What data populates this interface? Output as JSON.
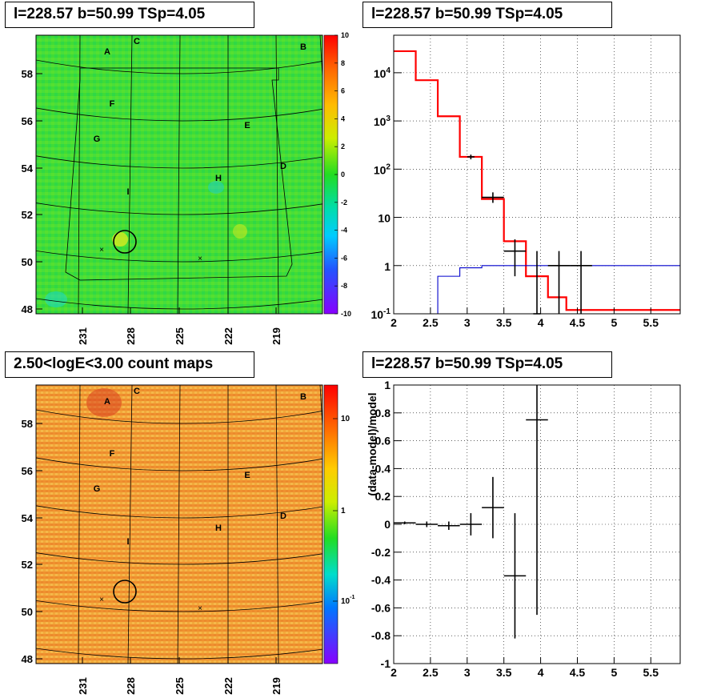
{
  "panels": {
    "tl_title": "l=228.57 b=50.99 TSp=4.05",
    "tr_title": "l=228.57 b=50.99 TSp=4.05",
    "bl_title": "2.50<logE<3.00 count maps",
    "br_title": "l=228.57 b=50.99 TSp=4.05"
  },
  "colors": {
    "model_red": "#ff0000",
    "model_blue": "#0000cc",
    "data_black": "#000000",
    "tsmap_base": "#33dd33",
    "counts_base": "#f0a030"
  },
  "chart_data": [
    {
      "id": "tsmap",
      "type": "heatmap",
      "title": "l=228.57 b=50.99 TSp=4.05",
      "x_ticks": [
        "231",
        "228",
        "225",
        "222",
        "219"
      ],
      "y_ticks": [
        "58",
        "56",
        "54",
        "52",
        "50",
        "48"
      ],
      "colorbar_ticks": [
        "10",
        "8",
        "6",
        "4",
        "2",
        "0",
        "-2",
        "-4",
        "-6",
        "-8",
        "-10"
      ],
      "zlim": [
        -10,
        10
      ],
      "source_labels": [
        "A",
        "B",
        "C",
        "D",
        "E",
        "F",
        "G",
        "H",
        "I"
      ],
      "markers": [
        {
          "type": "circle",
          "l": 228.57,
          "b": 50.7
        },
        {
          "type": "cross",
          "l": 229.8,
          "b": 50.4
        },
        {
          "type": "cross",
          "l": 223.6,
          "b": 50.0
        }
      ]
    },
    {
      "id": "spectrum",
      "type": "line",
      "title": "l=228.57 b=50.99 TSp=4.05",
      "xlim": [
        2,
        5.9
      ],
      "ylim": [
        0.1,
        60000
      ],
      "yscale": "log",
      "x_ticks": [
        "2",
        "2.5",
        "3",
        "3.5",
        "4",
        "4.5",
        "5",
        "5.5"
      ],
      "y_ticks": [
        "10^-1",
        "1",
        "10",
        "10^2",
        "10^3",
        "10^4"
      ],
      "grid": true,
      "series": [
        {
          "kind": "step",
          "color": "#ff0000",
          "bins": [
            {
              "x0": 2.0,
              "x1": 2.3,
              "y": 28000
            },
            {
              "x0": 2.3,
              "x1": 2.6,
              "y": 7000
            },
            {
              "x0": 2.6,
              "x1": 2.9,
              "y": 1250
            },
            {
              "x0": 2.9,
              "x1": 3.2,
              "y": 180
            },
            {
              "x0": 3.2,
              "x1": 3.5,
              "y": 24
            },
            {
              "x0": 3.5,
              "x1": 3.8,
              "y": 3.2
            },
            {
              "x0": 3.8,
              "x1": 3.95,
              "y": 0.6
            },
            {
              "x0": 3.95,
              "x1": 4.1,
              "y": 0.6
            },
            {
              "x0": 4.1,
              "x1": 4.35,
              "y": 0.22
            },
            {
              "x0": 4.35,
              "x1": 4.6,
              "y": 0.12
            },
            {
              "x0": 4.6,
              "x1": 5.9,
              "y": 0.12
            }
          ]
        },
        {
          "kind": "step",
          "color": "#0000cc",
          "bins": [
            {
              "x0": 2.3,
              "x1": 2.6,
              "y": 0.1
            },
            {
              "x0": 2.6,
              "x1": 2.9,
              "y": 0.6
            },
            {
              "x0": 2.9,
              "x1": 3.2,
              "y": 0.9
            },
            {
              "x0": 3.2,
              "x1": 3.5,
              "y": 1.0
            },
            {
              "x0": 3.5,
              "x1": 5.9,
              "y": 1.0
            }
          ]
        },
        {
          "kind": "errorbar",
          "color": "#000000",
          "points": [
            {
              "x": 3.05,
              "y": 180,
              "xerr": 0.05,
              "ylo": 160,
              "yhi": 200
            },
            {
              "x": 3.35,
              "y": 26,
              "xerr": 0.15,
              "ylo": 20,
              "yhi": 33
            },
            {
              "x": 3.65,
              "y": 2.0,
              "xerr": 0.15,
              "ylo": 0.6,
              "yhi": 3.5
            },
            {
              "x": 3.95,
              "y": 0.1,
              "xerr": 0.05,
              "ylo": 0.1,
              "yhi": 2.0
            },
            {
              "x": 4.25,
              "y": 1.0,
              "xerr": 0.15,
              "ylo": 0.1,
              "yhi": 2.0
            },
            {
              "x": 4.55,
              "y": 1.0,
              "xerr": 0.15,
              "ylo": 0.1,
              "yhi": 2.0
            }
          ]
        }
      ]
    },
    {
      "id": "countmap",
      "type": "heatmap",
      "title": "2.50<logE<3.00 count maps",
      "x_ticks": [
        "231",
        "228",
        "225",
        "222",
        "219"
      ],
      "y_ticks": [
        "58",
        "56",
        "54",
        "52",
        "50",
        "48"
      ],
      "colorbar_ticks": [
        "10",
        "1",
        "10^-1"
      ],
      "zscale": "log",
      "source_labels": [
        "A",
        "B",
        "C",
        "D",
        "E",
        "F",
        "G",
        "H",
        "I"
      ],
      "markers": [
        {
          "type": "circle",
          "l": 228.57,
          "b": 50.7
        },
        {
          "type": "cross",
          "l": 229.8,
          "b": 50.4
        },
        {
          "type": "cross",
          "l": 223.6,
          "b": 50.0
        }
      ]
    },
    {
      "id": "residuals",
      "type": "scatter",
      "title": "l=228.57 b=50.99 TSp=4.05",
      "ylabel": "(data-model)/model",
      "xlim": [
        2,
        5.9
      ],
      "ylim": [
        -1,
        1
      ],
      "x_ticks": [
        "2",
        "2.5",
        "3",
        "3.5",
        "4",
        "4.5",
        "5",
        "5.5"
      ],
      "y_ticks": [
        "1",
        "0.8",
        "0.6",
        "0.4",
        "0.2",
        "0",
        "-0.2",
        "-0.4",
        "-0.6",
        "-0.8",
        "-1"
      ],
      "grid": true,
      "points": [
        {
          "x": 2.15,
          "y": 0.01,
          "xerr": 0.15,
          "yerr": 0.01
        },
        {
          "x": 2.45,
          "y": 0.0,
          "xerr": 0.15,
          "yerr": 0.02
        },
        {
          "x": 2.75,
          "y": -0.01,
          "xerr": 0.15,
          "yerr": 0.03
        },
        {
          "x": 3.05,
          "y": 0.0,
          "xerr": 0.15,
          "yerr": 0.08
        },
        {
          "x": 3.35,
          "y": 0.12,
          "xerr": 0.15,
          "yerr": 0.22
        },
        {
          "x": 3.65,
          "y": -0.37,
          "xerr": 0.15,
          "yerr": 0.45
        },
        {
          "x": 3.95,
          "y": 0.75,
          "xerr": 0.15,
          "yerr": 1.4
        }
      ]
    }
  ]
}
